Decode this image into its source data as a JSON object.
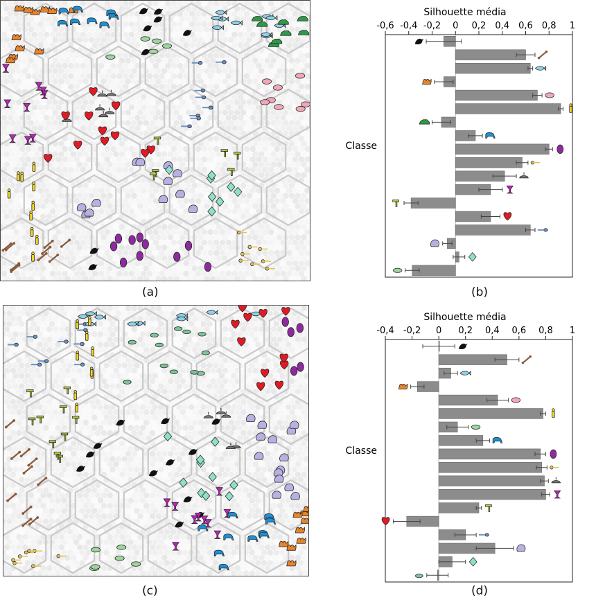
{
  "maps": [
    {
      "id": "a",
      "panel_label": "(a)"
    },
    {
      "id": "c",
      "panel_label": "(c)"
    }
  ],
  "icon_classes": [
    {
      "name": "bird",
      "color": "#111111"
    },
    {
      "name": "bone",
      "color": "#8b5a3c"
    },
    {
      "name": "fish",
      "color": "#8fd0e8"
    },
    {
      "name": "camel",
      "color": "#e8842a"
    },
    {
      "name": "pig",
      "color": "#f0a8b8"
    },
    {
      "name": "person",
      "color": "#f2d52a"
    },
    {
      "name": "car",
      "color": "#2e9a45"
    },
    {
      "name": "elephant",
      "color": "#1f8fd4"
    },
    {
      "name": "leaf",
      "color": "#8e2aa0"
    },
    {
      "name": "key",
      "color": "#e3c15a"
    },
    {
      "name": "lamp",
      "color": "#777777"
    },
    {
      "name": "goblet",
      "color": "#c11fc1"
    },
    {
      "name": "hammer",
      "color": "#b8cc3a"
    },
    {
      "name": "turtle",
      "color": "#9ed49e"
    },
    {
      "name": "heart",
      "color": "#e01b24"
    },
    {
      "name": "spoon",
      "color": "#6b8fc0"
    },
    {
      "name": "cloud",
      "color": "#b8b0e0"
    },
    {
      "name": "kite",
      "color": "#8fe0c8"
    },
    {
      "name": "frog",
      "color": "#7cc49a"
    }
  ],
  "chart_data": [
    {
      "panel_label": "(b)",
      "type": "bar",
      "orientation": "horizontal",
      "title": "Silhouette média",
      "ylabel": "Classe",
      "xlim": [
        -0.6,
        1
      ],
      "xticks": [
        "-0,6",
        "-0,4",
        "-0,2",
        "0",
        "0,2",
        "0,4",
        "0,6",
        "0,8",
        "1"
      ],
      "tick_values": [
        -0.6,
        -0.4,
        -0.2,
        0,
        0.2,
        0.4,
        0.6,
        0.8,
        1
      ],
      "categories": [
        "bird",
        "bone",
        "fish",
        "camel",
        "pig",
        "person",
        "car",
        "elephant",
        "leaf",
        "key",
        "lamp",
        "goblet",
        "hammer",
        "heart",
        "spoon",
        "cloud",
        "kite",
        "turtle"
      ],
      "values": [
        -0.1,
        0.6,
        0.64,
        -0.1,
        0.7,
        0.9,
        -0.12,
        0.17,
        0.8,
        0.57,
        0.42,
        0.3,
        -0.38,
        0.3,
        0.64,
        -0.07,
        0.03,
        -0.37
      ],
      "errors": [
        0.15,
        0.08,
        0.02,
        0.08,
        0.04,
        0.02,
        0.08,
        0.06,
        0.03,
        0.05,
        0.1,
        0.1,
        0.06,
        0.08,
        0.04,
        0.04,
        0.05,
        0.06
      ]
    },
    {
      "panel_label": "(d)",
      "type": "bar",
      "orientation": "horizontal",
      "title": "Silhouette média",
      "ylabel": "Classe",
      "xlim": [
        -0.4,
        1
      ],
      "xticks": [
        "-0,4",
        "-0,2",
        "0",
        "0,2",
        "0,4",
        "0,6",
        "0,8",
        "1"
      ],
      "tick_values": [
        -0.4,
        -0.2,
        0,
        0.2,
        0.4,
        0.6,
        0.8,
        1
      ],
      "categories": [
        "bird",
        "bone",
        "fish",
        "camel",
        "pig",
        "person",
        "turtle",
        "elephant",
        "leaf",
        "key",
        "lamp",
        "goblet",
        "hammer",
        "heart",
        "spoon",
        "cloud",
        "kite",
        "frog"
      ],
      "values": [
        0,
        0.51,
        0.09,
        -0.16,
        0.44,
        0.78,
        0.14,
        0.33,
        0.76,
        0.77,
        0.79,
        0.8,
        0.3,
        -0.24,
        0.2,
        0.42,
        0.1,
        -0.01
      ],
      "errors": [
        0.12,
        0.09,
        0.05,
        0.05,
        0.08,
        0.02,
        0.08,
        0.05,
        0.04,
        0.04,
        0.03,
        0.03,
        0.02,
        0.1,
        0.08,
        0.14,
        0.1,
        0.08
      ]
    }
  ]
}
